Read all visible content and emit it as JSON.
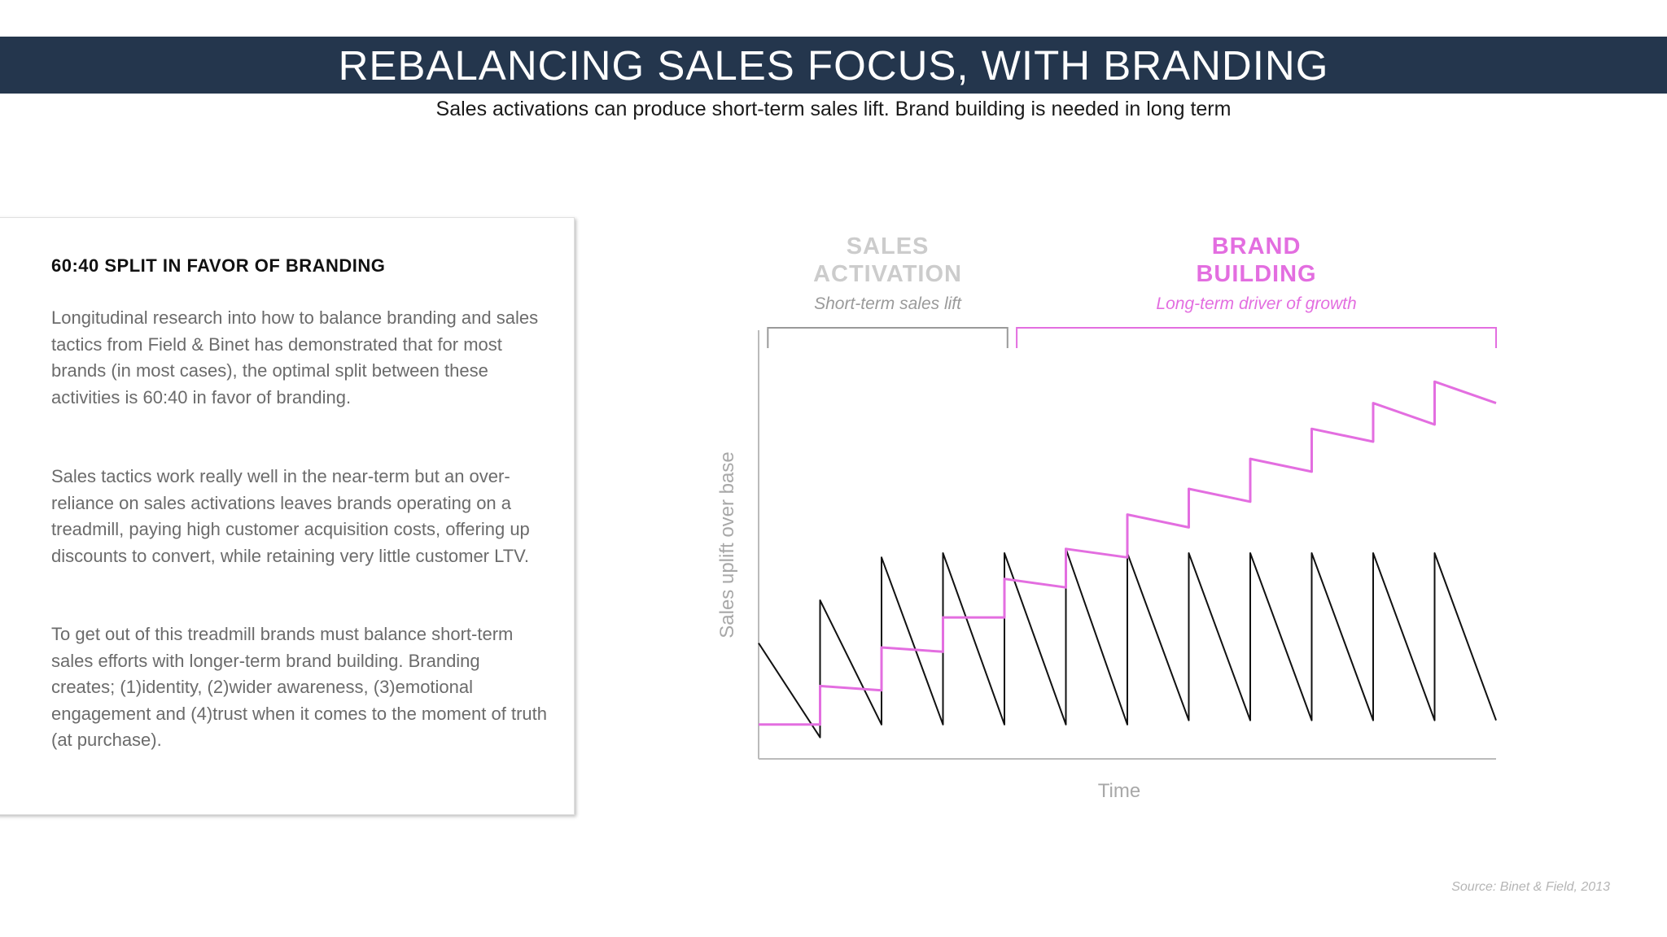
{
  "header": {
    "title": "REBALANCING SALES FOCUS, WITH BRANDING",
    "subtitle": "Sales activations can produce short-term sales lift. Brand building is needed in long term"
  },
  "card": {
    "heading": "60:40 SPLIT IN FAVOR OF BRANDING",
    "paragraphs": [
      "Longitudinal research into how to balance branding and sales tactics from Field & Binet has demonstrated that for most brands (in most cases), the optimal split between these activities is 60:40 in favor of branding.",
      "Sales tactics work really well in the near-term but an over-reliance on sales activations leaves brands operating on a treadmill, paying high customer acquisition costs, offering up discounts to convert, while retaining very little customer LTV.",
      "To get out of this treadmill brands must balance short-term sales efforts with longer-term brand building. Branding creates; (1)identity, (2)wider awareness, (3)emotional engagement and (4)trust when it comes to the moment of truth (at purchase)."
    ]
  },
  "colors": {
    "title_bar": "#24364d",
    "sales_activation": "#cccccc",
    "brand_building": "#e36ee0",
    "sales_line": "#111111",
    "axis": "#bbbbbb"
  },
  "chart_data": {
    "type": "line",
    "xlabel": "Time",
    "ylabel": "Sales uplift over base",
    "xlim": [
      0,
      12
    ],
    "ylim": [
      0,
      100
    ],
    "grid": false,
    "legend": "none",
    "annotations": [
      {
        "title": "SALES ACTIVATION",
        "subtitle": "Short-term sales lift",
        "range": [
          0.15,
          4.05
        ],
        "color": "#cccccc"
      },
      {
        "title": "BRAND BUILDING",
        "subtitle": "Long-term driver of growth",
        "range": [
          4.2,
          12
        ],
        "color": "#e36ee0"
      }
    ],
    "series": [
      {
        "role": "sales-activation-spikes",
        "color": "#111111",
        "points": [
          [
            0,
            27
          ],
          [
            1,
            5
          ],
          [
            1,
            37
          ],
          [
            2,
            8
          ],
          [
            2,
            47
          ],
          [
            3,
            8
          ],
          [
            3,
            48
          ],
          [
            4,
            8
          ],
          [
            4,
            48
          ],
          [
            5,
            8
          ],
          [
            5,
            49
          ],
          [
            6,
            8
          ],
          [
            6,
            48
          ],
          [
            7,
            9
          ],
          [
            7,
            48
          ],
          [
            8,
            9
          ],
          [
            8,
            48
          ],
          [
            9,
            9
          ],
          [
            9,
            48
          ],
          [
            10,
            9
          ],
          [
            10,
            48
          ],
          [
            11,
            9
          ],
          [
            11,
            48
          ],
          [
            12,
            9
          ]
        ]
      },
      {
        "role": "brand-building-steps",
        "color": "#e36ee0",
        "points": [
          [
            0,
            8
          ],
          [
            1,
            8
          ],
          [
            1,
            17
          ],
          [
            2,
            16
          ],
          [
            2,
            26
          ],
          [
            3,
            25
          ],
          [
            3,
            33
          ],
          [
            4,
            33
          ],
          [
            4,
            42
          ],
          [
            5,
            40
          ],
          [
            5,
            49
          ],
          [
            6,
            47
          ],
          [
            6,
            57
          ],
          [
            7,
            54
          ],
          [
            7,
            63
          ],
          [
            8,
            60
          ],
          [
            8,
            70
          ],
          [
            9,
            67
          ],
          [
            9,
            77
          ],
          [
            10,
            74
          ],
          [
            10,
            83
          ],
          [
            11,
            78
          ],
          [
            11,
            88
          ],
          [
            12,
            83
          ]
        ]
      }
    ]
  },
  "source": "Source: Binet & Field, 2013"
}
